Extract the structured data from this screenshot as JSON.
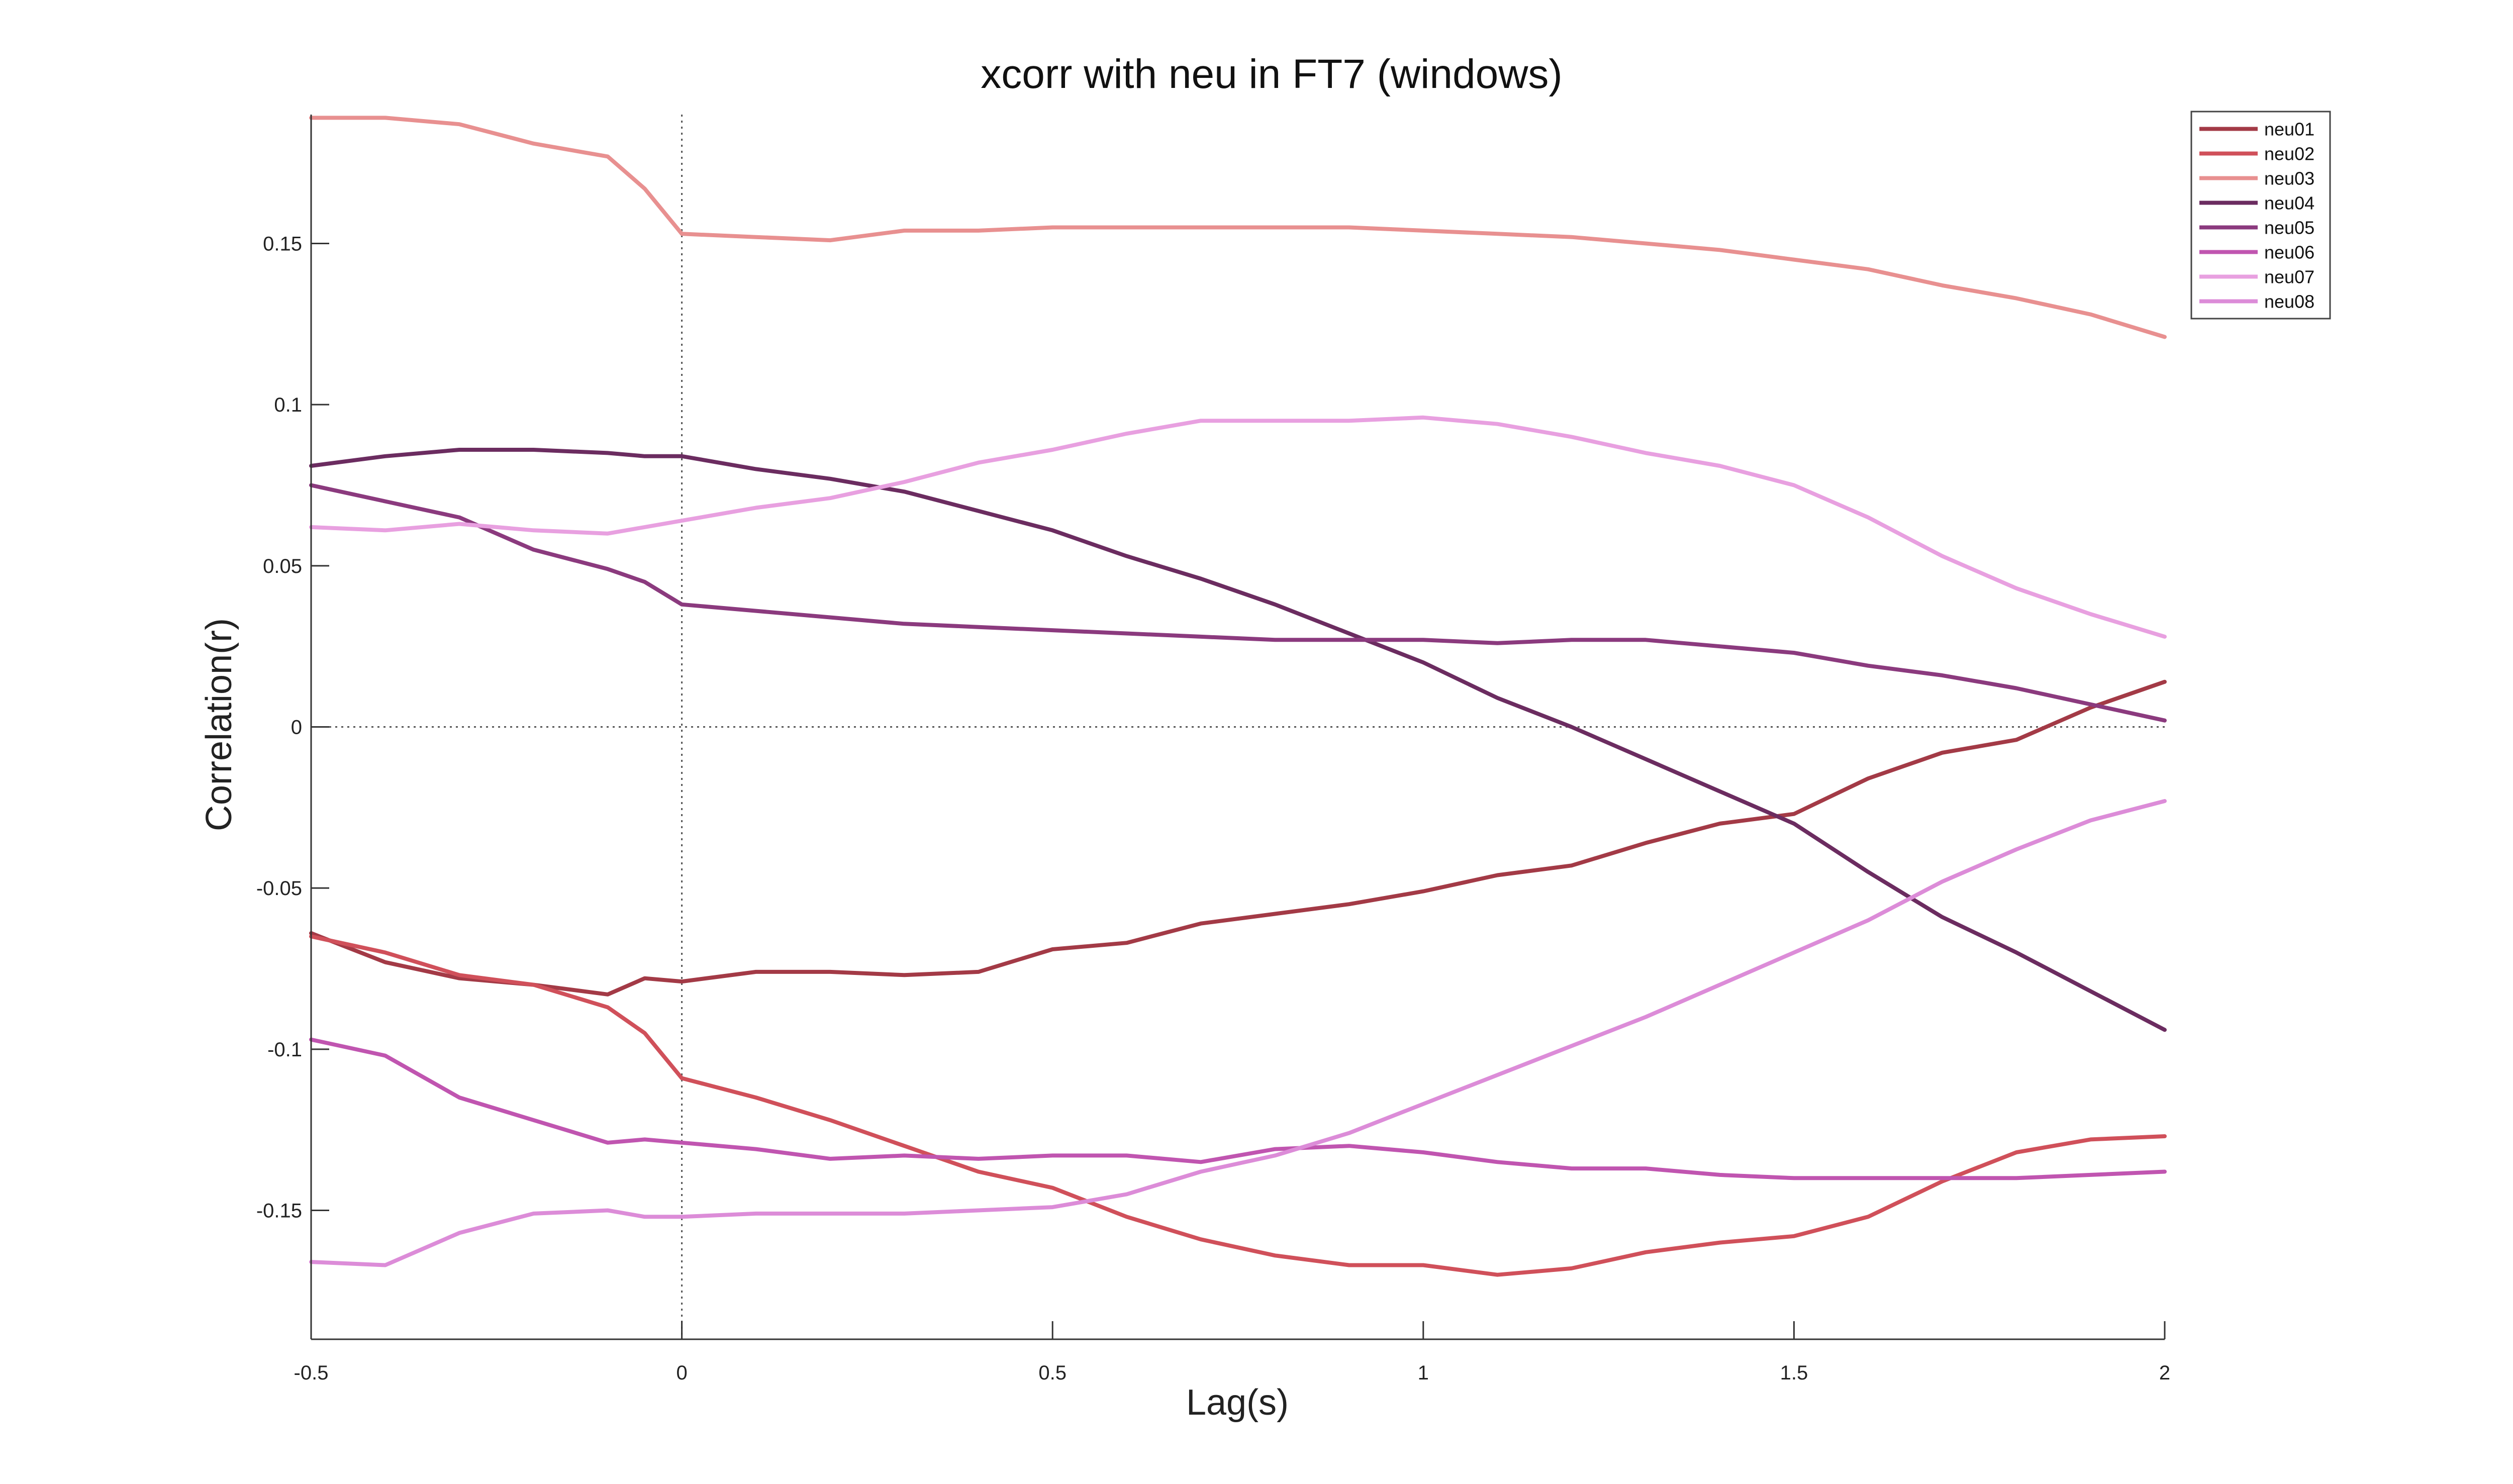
{
  "chart_data": {
    "type": "line",
    "title": "xcorr with neu in FT7 (windows)",
    "xlabel": "Lag(s)",
    "ylabel": "Correlation(r)",
    "xlim": [
      -0.5,
      2
    ],
    "ylim": [
      -0.19,
      0.19
    ],
    "xticks": [
      -0.5,
      0,
      0.5,
      1,
      1.5,
      2
    ],
    "xtick_labels": [
      "-0.5",
      "0",
      "0.5",
      "1",
      "1.5",
      "2"
    ],
    "yticks": [
      -0.15,
      -0.1,
      -0.05,
      0,
      0.05,
      0.1,
      0.15
    ],
    "ytick_labels": [
      "-0.15",
      "-0.1",
      "-0.05",
      "0",
      "0.05",
      "0.1",
      "0.15"
    ],
    "reference_lines": {
      "x": 0,
      "y": 0,
      "style": "dotted"
    },
    "grid": false,
    "legend_position": "top-right",
    "x": [
      -0.5,
      -0.4,
      -0.3,
      -0.2,
      -0.1,
      -0.05,
      0,
      0.1,
      0.2,
      0.3,
      0.4,
      0.5,
      0.6,
      0.7,
      0.8,
      0.9,
      1.0,
      1.1,
      1.2,
      1.3,
      1.4,
      1.5,
      1.6,
      1.7,
      1.8,
      1.9,
      2.0
    ],
    "series": [
      {
        "name": "neu01",
        "color": "#a33a46",
        "values": [
          -0.064,
          -0.073,
          -0.078,
          -0.08,
          -0.083,
          -0.078,
          -0.079,
          -0.076,
          -0.076,
          -0.077,
          -0.076,
          -0.069,
          -0.067,
          -0.061,
          -0.058,
          -0.055,
          -0.051,
          -0.046,
          -0.043,
          -0.036,
          -0.03,
          -0.027,
          -0.016,
          -0.008,
          -0.004,
          0.006,
          0.014
        ]
      },
      {
        "name": "neu02",
        "color": "#d0505a",
        "values": [
          -0.065,
          -0.07,
          -0.077,
          -0.08,
          -0.087,
          -0.095,
          -0.109,
          -0.115,
          -0.122,
          -0.13,
          -0.138,
          -0.143,
          -0.152,
          -0.159,
          -0.164,
          -0.167,
          -0.167,
          -0.17,
          -0.168,
          -0.163,
          -0.16,
          -0.158,
          -0.152,
          -0.141,
          -0.132,
          -0.128,
          -0.127
        ]
      },
      {
        "name": "neu03",
        "color": "#e89090",
        "values": [
          0.189,
          0.189,
          0.187,
          0.181,
          0.177,
          0.167,
          0.153,
          0.152,
          0.151,
          0.154,
          0.154,
          0.155,
          0.155,
          0.155,
          0.155,
          0.155,
          0.154,
          0.153,
          0.152,
          0.15,
          0.148,
          0.145,
          0.142,
          0.137,
          0.133,
          0.128,
          0.121
        ]
      },
      {
        "name": "neu04",
        "color": "#6b2c60",
        "values": [
          0.081,
          0.084,
          0.086,
          0.086,
          0.085,
          0.084,
          0.084,
          0.08,
          0.077,
          0.073,
          0.067,
          0.061,
          0.053,
          0.046,
          0.038,
          0.029,
          0.02,
          0.009,
          0.0,
          -0.01,
          -0.02,
          -0.03,
          -0.045,
          -0.059,
          -0.07,
          -0.082,
          -0.094
        ]
      },
      {
        "name": "neu05",
        "color": "#8b3a7e",
        "values": [
          0.075,
          0.07,
          0.065,
          0.055,
          0.049,
          0.045,
          0.038,
          0.036,
          0.034,
          0.032,
          0.031,
          0.03,
          0.029,
          0.028,
          0.027,
          0.027,
          0.027,
          0.026,
          0.027,
          0.027,
          0.025,
          0.023,
          0.019,
          0.016,
          0.012,
          0.007,
          0.002
        ]
      },
      {
        "name": "neu06",
        "color": "#c055b0",
        "values": [
          -0.097,
          -0.102,
          -0.115,
          -0.122,
          -0.129,
          -0.128,
          -0.129,
          -0.131,
          -0.134,
          -0.133,
          -0.134,
          -0.133,
          -0.133,
          -0.135,
          -0.131,
          -0.13,
          -0.132,
          -0.135,
          -0.137,
          -0.137,
          -0.139,
          -0.14,
          -0.14,
          -0.14,
          -0.14,
          -0.139,
          -0.138
        ]
      },
      {
        "name": "neu07",
        "color": "#e8a0e0",
        "values": [
          0.062,
          0.061,
          0.063,
          0.061,
          0.06,
          0.062,
          0.064,
          0.068,
          0.071,
          0.076,
          0.082,
          0.086,
          0.091,
          0.095,
          0.095,
          0.095,
          0.096,
          0.094,
          0.09,
          0.085,
          0.081,
          0.075,
          0.065,
          0.053,
          0.043,
          0.035,
          0.028
        ]
      },
      {
        "name": "neu08",
        "color": "#dc8cd8",
        "values": [
          -0.166,
          -0.167,
          -0.157,
          -0.151,
          -0.15,
          -0.152,
          -0.152,
          -0.151,
          -0.151,
          -0.151,
          -0.15,
          -0.149,
          -0.145,
          -0.138,
          -0.133,
          -0.126,
          -0.117,
          -0.108,
          -0.099,
          -0.09,
          -0.08,
          -0.07,
          -0.06,
          -0.048,
          -0.038,
          -0.029,
          -0.023
        ]
      }
    ]
  }
}
